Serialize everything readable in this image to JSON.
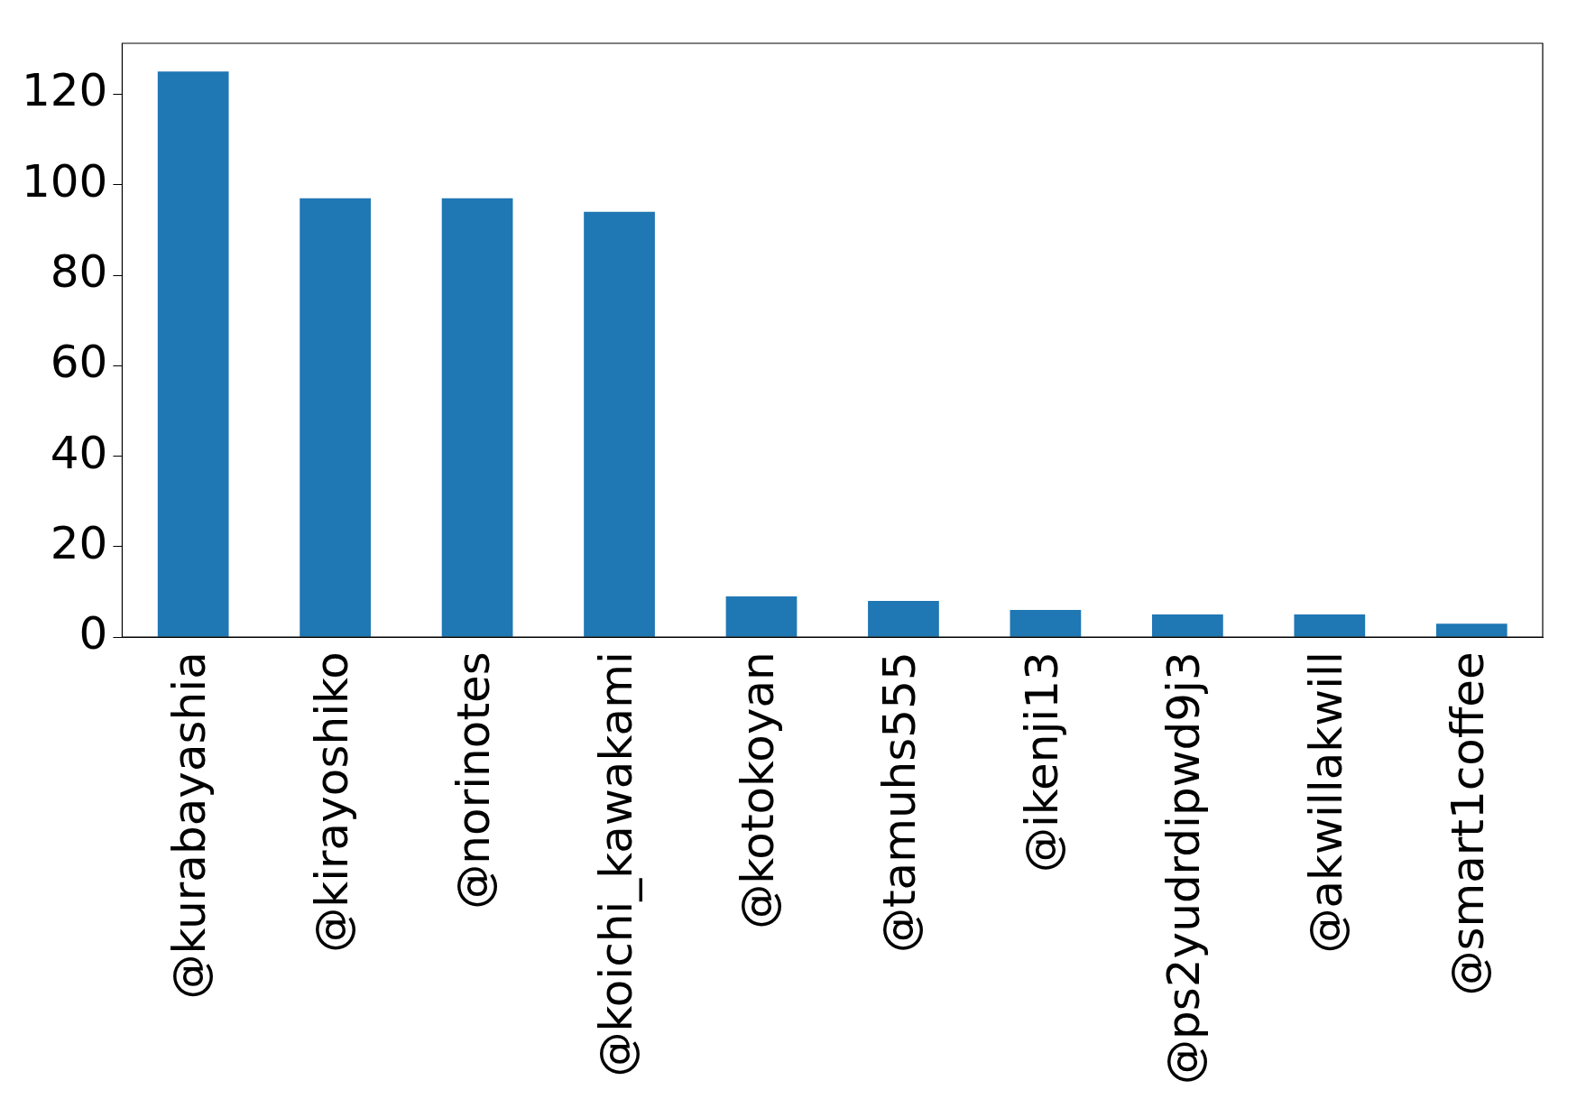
{
  "chart_data": {
    "type": "bar",
    "categories": [
      "@kurabayashia",
      "@kirayoshiko",
      "@norinotes",
      "@koichi_kawakami",
      "@kotokoyan",
      "@tamuhs555",
      "@ikenji13",
      "@ps2yudrdipwd9j3",
      "@akwillakwill",
      "@smart1coffee"
    ],
    "values": [
      125,
      97,
      97,
      94,
      9,
      8,
      6,
      5,
      5,
      3
    ],
    "color": "#1f77b4",
    "ylim": [
      0,
      131.25
    ],
    "yticks": [
      0,
      20,
      40,
      60,
      80,
      100,
      120
    ],
    "grid": false,
    "legend": false
  }
}
